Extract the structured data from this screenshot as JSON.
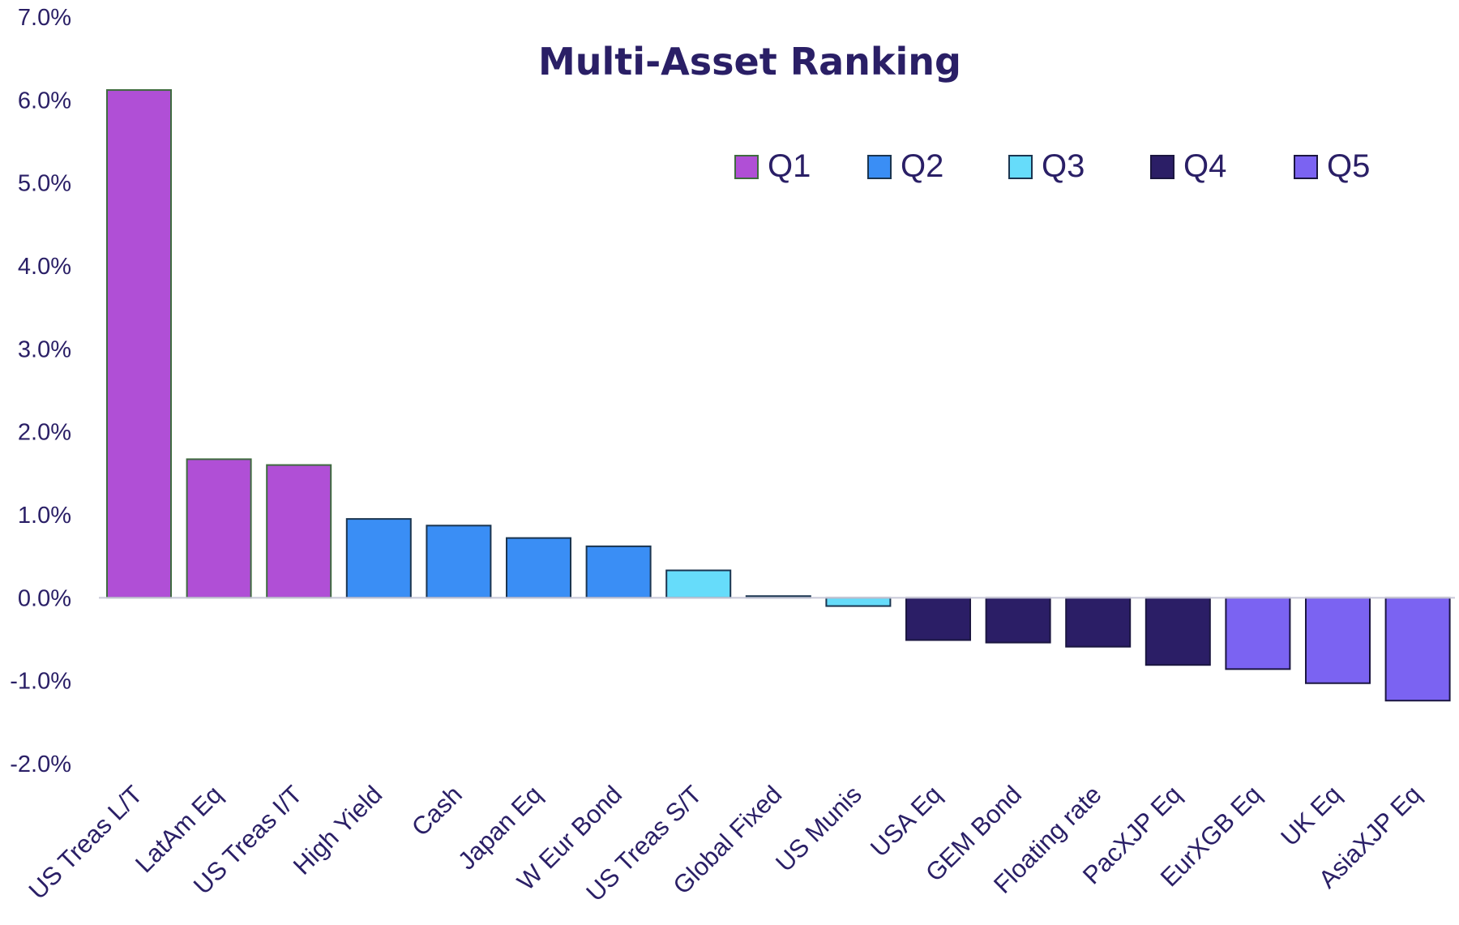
{
  "chart_data": {
    "type": "bar",
    "title": "Multi-Asset Ranking",
    "xlabel": "",
    "ylabel": "",
    "ylim": [
      -2.0,
      7.0
    ],
    "yticks": [
      7.0,
      6.0,
      5.0,
      4.0,
      3.0,
      2.0,
      1.0,
      0.0,
      -1.0,
      -2.0
    ],
    "ytick_labels": [
      "7.0%",
      "6.0%",
      "5.0%",
      "4.0%",
      "3.0%",
      "2.0%",
      "1.0%",
      "0.0%",
      "-1.0%",
      "-2.0%"
    ],
    "grid": false,
    "legend_position": "top-right",
    "categories": [
      "US Treas L/T",
      "LatAm Eq",
      "US Treas I/T",
      "High Yield",
      "Cash",
      "Japan Eq",
      "W Eur Bond",
      "US Treas S/T",
      "Global Fixed",
      "US Munis",
      "USA Eq",
      "GEM Bond",
      "Floating rate",
      "PacXJP Eq",
      "EurXGB Eq",
      "UK Eq",
      "AsiaXJP Eq"
    ],
    "values": [
      6.12,
      1.67,
      1.6,
      0.95,
      0.87,
      0.72,
      0.62,
      0.33,
      0.02,
      -0.1,
      -0.51,
      -0.54,
      -0.59,
      -0.81,
      -0.86,
      -1.03,
      -1.24
    ],
    "quintile": [
      "Q1",
      "Q1",
      "Q1",
      "Q2",
      "Q2",
      "Q2",
      "Q2",
      "Q3",
      "Q3",
      "Q3",
      "Q4",
      "Q4",
      "Q4",
      "Q4",
      "Q5",
      "Q5",
      "Q5"
    ],
    "series": [
      {
        "name": "Q1",
        "color": "#b04fd6",
        "border": "#3f6b3f"
      },
      {
        "name": "Q2",
        "color": "#3a8ef5",
        "border": "#1b3550"
      },
      {
        "name": "Q3",
        "color": "#66dcfa",
        "border": "#1b3550"
      },
      {
        "name": "Q4",
        "color": "#2b1e66",
        "border": "#1b1640"
      },
      {
        "name": "Q5",
        "color": "#7b63f2",
        "border": "#1b1640"
      }
    ]
  }
}
